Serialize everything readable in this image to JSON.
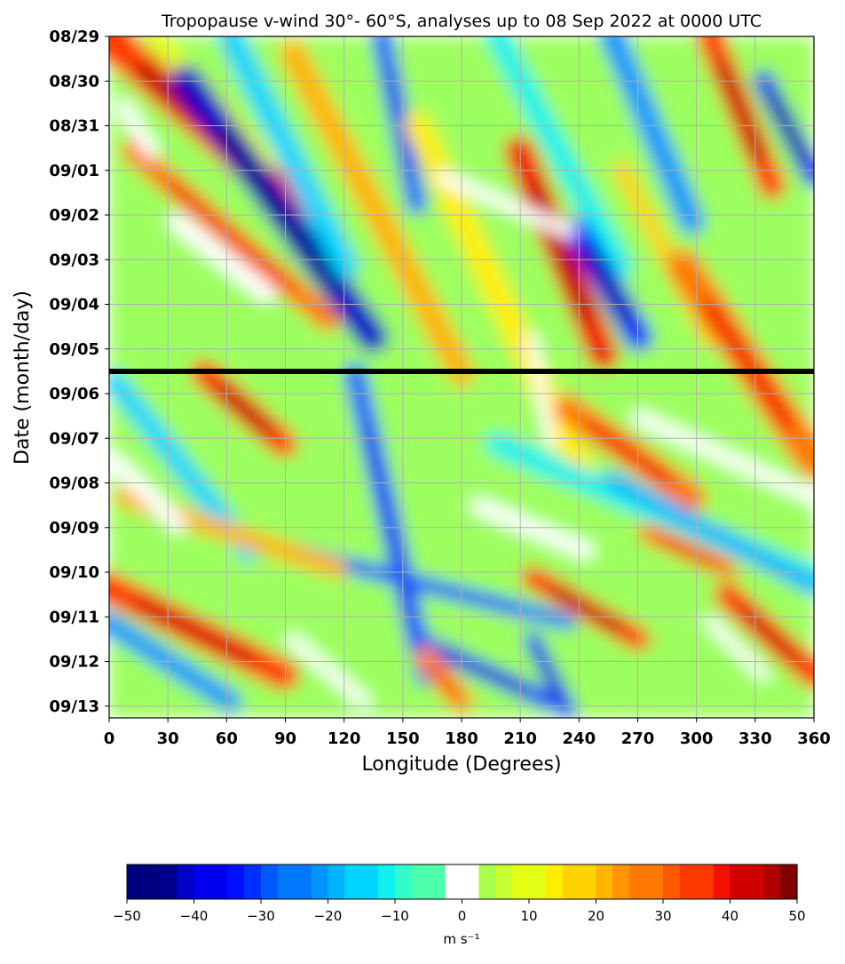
{
  "chart_data": {
    "type": "heatmap",
    "title": "Tropopause v-wind 30°- 60°S, analyses up to 08 Sep 2022 at 0000 UTC",
    "xlabel": "Longitude (Degrees)",
    "ylabel": "Date (month/day)",
    "x_ticks": [
      "0",
      "30",
      "60",
      "90",
      "120",
      "150",
      "180",
      "210",
      "240",
      "270",
      "300",
      "330",
      "360"
    ],
    "xlim": [
      0,
      360
    ],
    "y_ticks": [
      "08/29",
      "08/30",
      "08/31",
      "09/01",
      "09/02",
      "09/03",
      "09/04",
      "09/05",
      "09/06",
      "09/07",
      "09/08",
      "09/09",
      "09/10",
      "09/11",
      "09/12",
      "09/13"
    ],
    "ylim": [
      "08/29 00Z",
      "09/13 06Z"
    ],
    "grid": true,
    "analysis_cutoff_line": "08 Sep 2022 0000 UTC (drawn at 09/05 12Z level on axis)",
    "colorbar": {
      "label": "m s⁻¹",
      "range": [
        -50,
        50
      ],
      "levels_step": 2.5,
      "blank_band": [
        -2.5,
        2.5
      ],
      "ticks": [
        "−50",
        "−40",
        "−30",
        "−20",
        "−10",
        "0",
        "10",
        "20",
        "30",
        "40",
        "50"
      ],
      "colormap": "jet",
      "colors": [
        "#000080",
        "#00008f",
        "#0000c8",
        "#0000f1",
        "#0010ff",
        "#0030ff",
        "#0058ff",
        "#0078ff",
        "#0094ff",
        "#00b4ff",
        "#00d4ff",
        "#10f0ee",
        "#2fffc7",
        "#4dffaa",
        "#ffffff",
        "#aaff4d",
        "#c7ff2f",
        "#e4ff13",
        "#ffee00",
        "#ffd200",
        "#ffb400",
        "#ff9400",
        "#ff7800",
        "#ff5800",
        "#ff3a00",
        "#f21000",
        "#d10000",
        "#b00000",
        "#800000"
      ]
    },
    "features": [
      {
        "sign": "positive",
        "description": "southeast-propagating bands of strong northerly/southerly wind, peaks near 40 m/s"
      },
      {
        "sign": "negative",
        "description": "alternating negative bands, minima near -45 m/s around 60-120°E on 09/02"
      }
    ]
  }
}
